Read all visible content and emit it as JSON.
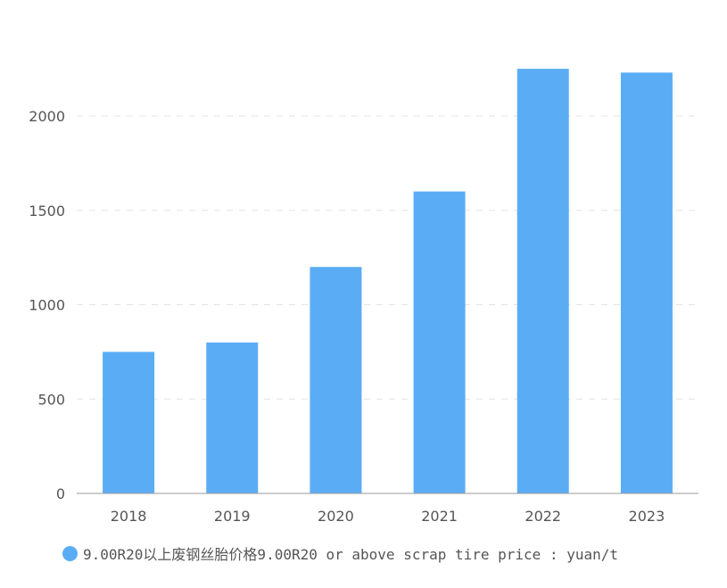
{
  "colors": {
    "bar": "#5aadf5",
    "grid": "#e3e3e3",
    "axis": "#999999",
    "text": "#555555"
  },
  "legend": {
    "label": "9.00R20以上废钢丝胎价格9.00R20 or above scrap tire price : yuan/t",
    "icon": "circle"
  },
  "chart_data": {
    "type": "bar",
    "categories": [
      "2018",
      "2019",
      "2020",
      "2021",
      "2022",
      "2023"
    ],
    "series": [
      {
        "name": "9.00R20以上废钢丝胎价格9.00R20 or above scrap tire price : yuan/t",
        "values": [
          750,
          800,
          1200,
          1600,
          2250,
          2230
        ]
      }
    ],
    "yticks": [
      0,
      500,
      1000,
      1500,
      2000
    ],
    "ylim": [
      0,
      2500
    ],
    "grid": true,
    "legend_position": "bottom"
  }
}
